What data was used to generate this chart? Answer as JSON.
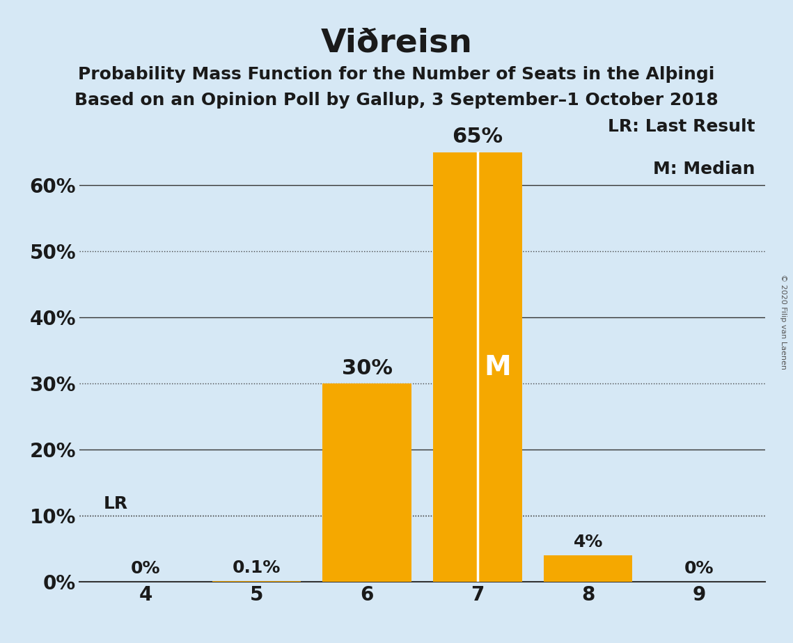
{
  "title": "Viðreisn",
  "subtitle1": "Probability Mass Function for the Number of Seats in the AlþIngi",
  "subtitle2": "Based on an Opinion Poll by Gallup, 3 September–1 October 2018",
  "copyright": "© 2020 Filip van Laenen",
  "categories": [
    4,
    5,
    6,
    7,
    8,
    9
  ],
  "values": [
    0.0,
    0.001,
    0.3,
    0.65,
    0.04,
    0.0
  ],
  "bar_color": "#F5A800",
  "background_color": "#D6E8F5",
  "text_color": "#1a1a1a",
  "bar_labels": [
    "0%",
    "0.1%",
    "30%",
    "65%",
    "4%",
    "0%"
  ],
  "median_bar": 7,
  "last_result_value": 0.1,
  "legend_lr": "LR: Last Result",
  "legend_m": "M: Median",
  "ylim": [
    0,
    0.72
  ],
  "yticks": [
    0.0,
    0.1,
    0.2,
    0.3,
    0.4,
    0.5,
    0.6
  ],
  "ytick_labels": [
    "0%",
    "10%",
    "20%",
    "30%",
    "40%",
    "50%",
    "60%"
  ],
  "dotted_yticks": [
    0.1,
    0.3,
    0.5
  ],
  "white_line_bar": 7
}
